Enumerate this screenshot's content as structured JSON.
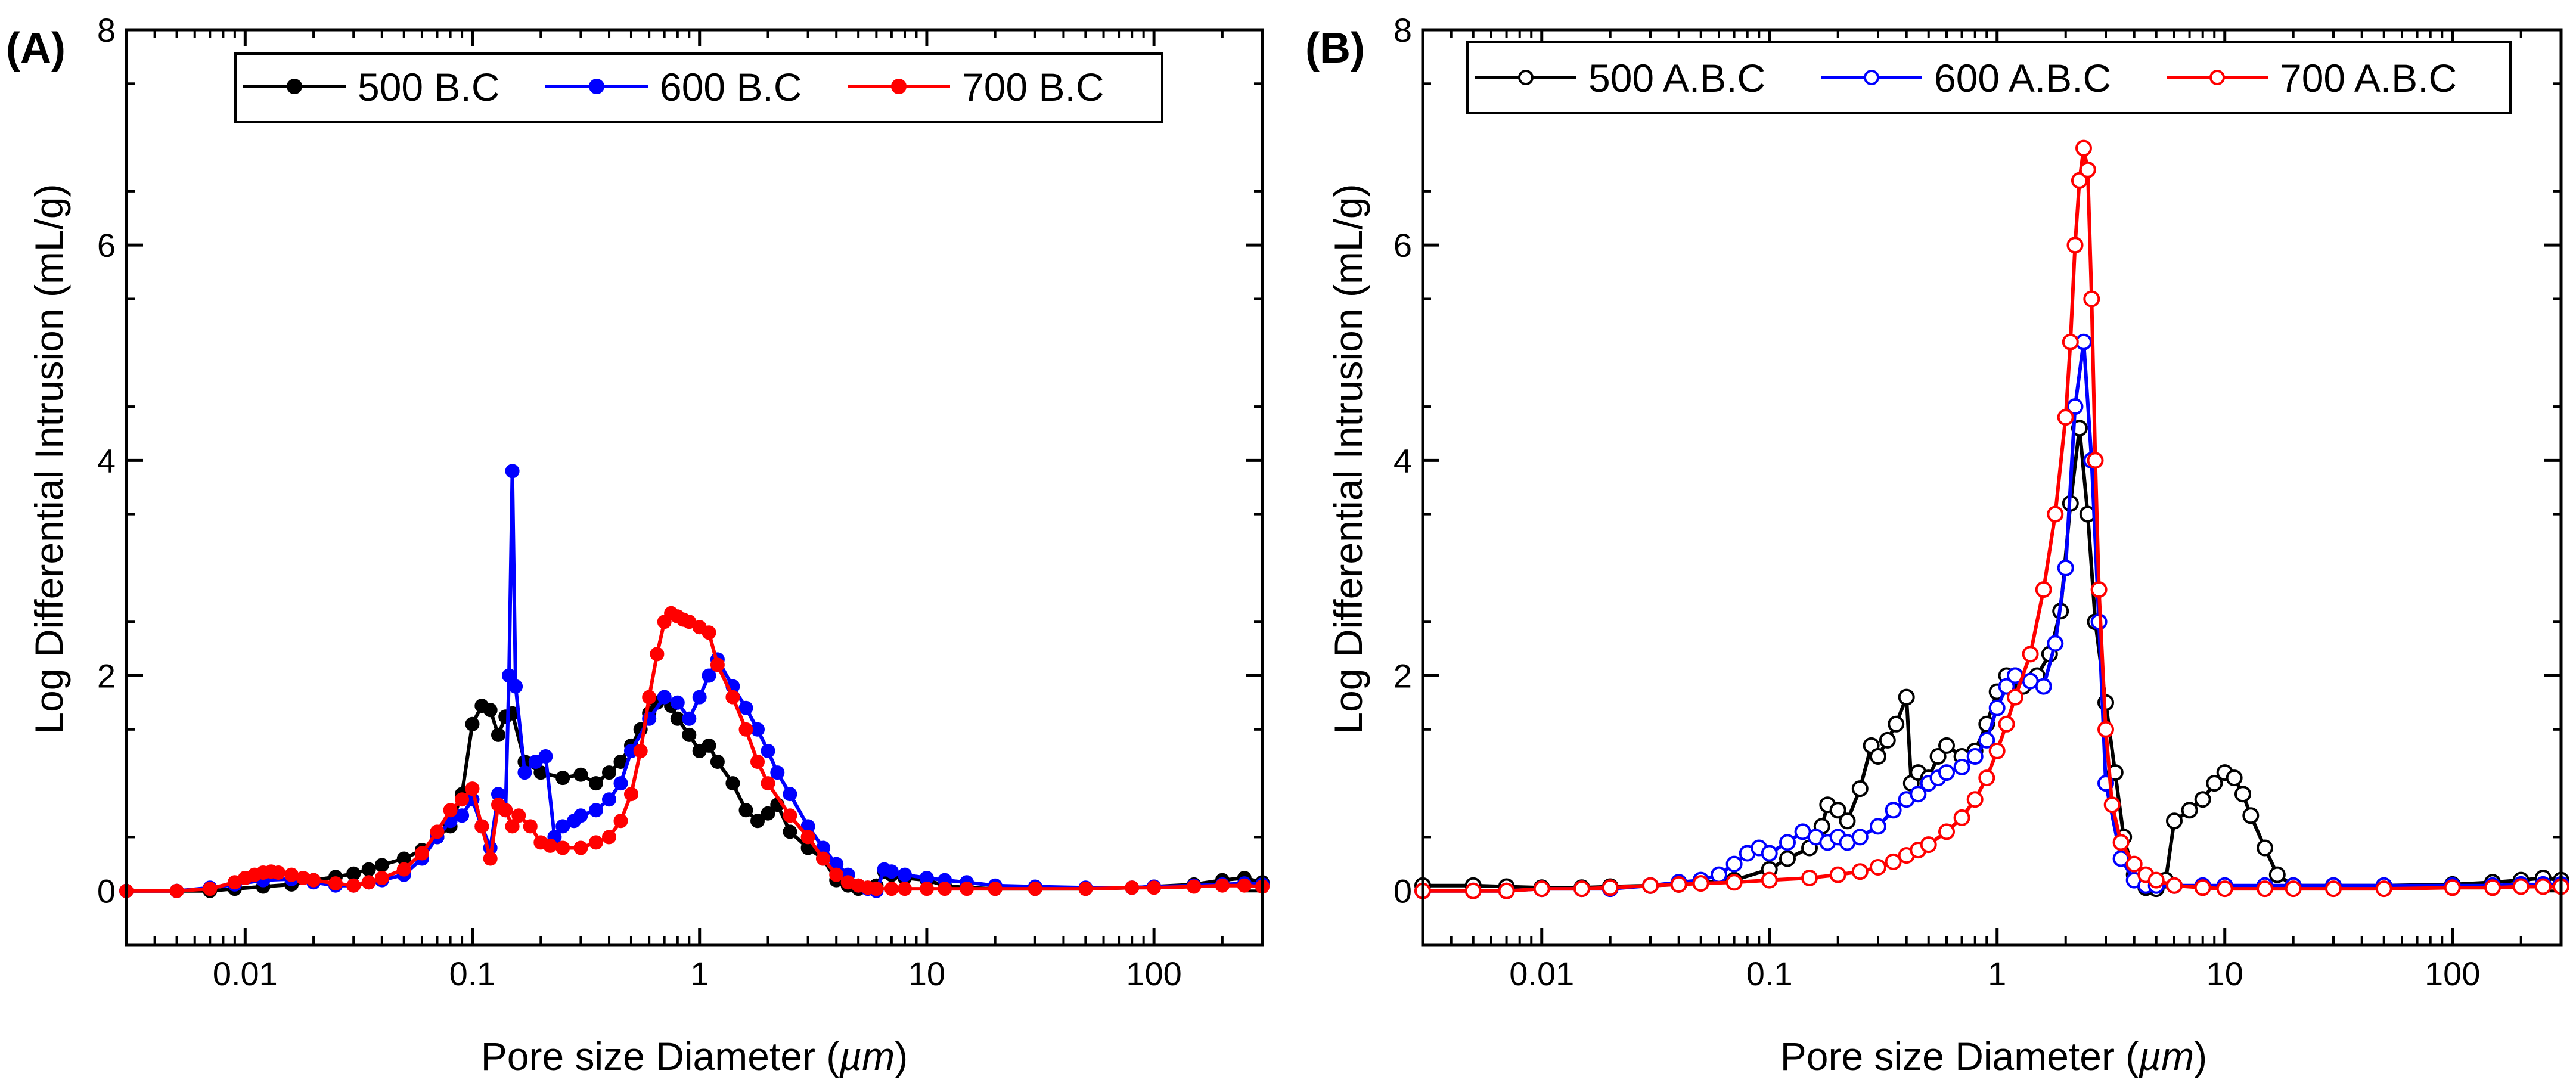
{
  "chart_data": [
    {
      "type": "line",
      "panel_label": "(A)",
      "xlabel_prefix": "Pore size Diameter (",
      "xlabel_unit": "µm",
      "xlabel_suffix": ")",
      "ylabel": "Log Differential Intrusion (mL/g)",
      "xscale": "log",
      "xlim": [
        0.003,
        300
      ],
      "ylim": [
        -0.5,
        8
      ],
      "xticks": [
        0.01,
        0.1,
        1,
        10,
        100
      ],
      "xtick_labels": [
        "0.01",
        "0.1",
        "1",
        "10",
        "100"
      ],
      "yticks": [
        0,
        2,
        4,
        6,
        8
      ],
      "ytick_labels": [
        "0",
        "2",
        "4",
        "6",
        "8"
      ],
      "grid": false,
      "legend_position": "top-center",
      "marker": "filled-circle",
      "series": [
        {
          "name": "500 B.C",
          "color": "#000000",
          "x": [
            0.003,
            0.005,
            0.007,
            0.009,
            0.012,
            0.016,
            0.02,
            0.025,
            0.03,
            0.035,
            0.04,
            0.05,
            0.06,
            0.07,
            0.08,
            0.09,
            0.1,
            0.11,
            0.12,
            0.13,
            0.14,
            0.15,
            0.17,
            0.2,
            0.25,
            0.3,
            0.35,
            0.4,
            0.45,
            0.5,
            0.55,
            0.6,
            0.65,
            0.7,
            0.75,
            0.8,
            0.9,
            1.0,
            1.1,
            1.2,
            1.4,
            1.6,
            1.8,
            2.0,
            2.2,
            2.5,
            3.0,
            3.5,
            4.0,
            4.5,
            5.0,
            5.5,
            6.0,
            6.5,
            7.0,
            8.0,
            10,
            12,
            15,
            20,
            30,
            50,
            80,
            100,
            150,
            200,
            250,
            300
          ],
          "y": [
            0,
            0,
            0,
            0.02,
            0.04,
            0.06,
            0.1,
            0.13,
            0.16,
            0.2,
            0.24,
            0.3,
            0.38,
            0.5,
            0.6,
            0.9,
            1.55,
            1.72,
            1.68,
            1.45,
            1.62,
            1.65,
            1.2,
            1.1,
            1.05,
            1.08,
            1.0,
            1.1,
            1.2,
            1.35,
            1.5,
            1.65,
            1.75,
            1.8,
            1.72,
            1.6,
            1.45,
            1.3,
            1.35,
            1.2,
            1.0,
            0.75,
            0.65,
            0.72,
            0.8,
            0.55,
            0.4,
            0.3,
            0.1,
            0.05,
            0.02,
            0.03,
            0.05,
            0.18,
            0.15,
            0.12,
            0.1,
            0.05,
            0.03,
            0.02,
            0.02,
            0.02,
            0.03,
            0.04,
            0.06,
            0.1,
            0.12,
            0.08
          ]
        },
        {
          "name": "600 B.C",
          "color": "#0000ff",
          "x": [
            0.003,
            0.005,
            0.007,
            0.009,
            0.012,
            0.016,
            0.02,
            0.025,
            0.03,
            0.035,
            0.04,
            0.05,
            0.06,
            0.07,
            0.08,
            0.09,
            0.1,
            0.11,
            0.12,
            0.13,
            0.14,
            0.145,
            0.15,
            0.155,
            0.17,
            0.19,
            0.21,
            0.23,
            0.25,
            0.28,
            0.3,
            0.35,
            0.4,
            0.45,
            0.5,
            0.6,
            0.7,
            0.8,
            0.9,
            1.0,
            1.1,
            1.2,
            1.4,
            1.6,
            1.8,
            2.0,
            2.2,
            2.5,
            3.0,
            3.5,
            4.0,
            4.5,
            5.0,
            5.5,
            6.0,
            6.5,
            7.0,
            8.0,
            10,
            12,
            15,
            20,
            30,
            50,
            80,
            100,
            150,
            200,
            250,
            300
          ],
          "y": [
            0,
            0,
            0.03,
            0.06,
            0.1,
            0.11,
            0.08,
            0.05,
            0.05,
            0.08,
            0.1,
            0.15,
            0.3,
            0.5,
            0.65,
            0.7,
            0.85,
            0.6,
            0.4,
            0.9,
            0.75,
            2.0,
            3.9,
            1.9,
            1.1,
            1.2,
            1.25,
            0.5,
            0.6,
            0.65,
            0.7,
            0.75,
            0.85,
            1.0,
            1.3,
            1.6,
            1.8,
            1.75,
            1.6,
            1.8,
            2.0,
            2.15,
            1.9,
            1.7,
            1.5,
            1.3,
            1.1,
            0.9,
            0.6,
            0.4,
            0.25,
            0.15,
            0.05,
            0.02,
            0,
            0.2,
            0.18,
            0.15,
            0.12,
            0.1,
            0.08,
            0.05,
            0.04,
            0.03,
            0.03,
            0.04,
            0.05,
            0.06,
            0.07,
            0.06
          ]
        },
        {
          "name": "700 B.C",
          "color": "#ff0000",
          "x": [
            0.003,
            0.005,
            0.007,
            0.009,
            0.01,
            0.011,
            0.012,
            0.013,
            0.014,
            0.016,
            0.018,
            0.02,
            0.025,
            0.03,
            0.035,
            0.04,
            0.05,
            0.06,
            0.07,
            0.08,
            0.09,
            0.1,
            0.11,
            0.12,
            0.13,
            0.14,
            0.15,
            0.16,
            0.18,
            0.2,
            0.22,
            0.25,
            0.3,
            0.35,
            0.4,
            0.45,
            0.5,
            0.55,
            0.6,
            0.65,
            0.7,
            0.75,
            0.8,
            0.85,
            0.9,
            1.0,
            1.1,
            1.2,
            1.4,
            1.6,
            1.8,
            2.0,
            2.5,
            3.0,
            3.5,
            4.0,
            4.5,
            5.0,
            5.5,
            6.0,
            7.0,
            8.0,
            10,
            12,
            15,
            20,
            30,
            50,
            80,
            100,
            150,
            200,
            250,
            300
          ],
          "y": [
            0,
            0,
            0.02,
            0.08,
            0.12,
            0.15,
            0.17,
            0.18,
            0.17,
            0.15,
            0.12,
            0.1,
            0.07,
            0.05,
            0.08,
            0.12,
            0.2,
            0.35,
            0.55,
            0.75,
            0.85,
            0.95,
            0.6,
            0.3,
            0.8,
            0.75,
            0.6,
            0.7,
            0.6,
            0.45,
            0.42,
            0.4,
            0.4,
            0.45,
            0.5,
            0.65,
            0.9,
            1.3,
            1.8,
            2.2,
            2.5,
            2.58,
            2.55,
            2.52,
            2.5,
            2.45,
            2.4,
            2.1,
            1.8,
            1.5,
            1.2,
            1.0,
            0.7,
            0.5,
            0.3,
            0.15,
            0.08,
            0.05,
            0.03,
            0.02,
            0.02,
            0.02,
            0.02,
            0.02,
            0.02,
            0.02,
            0.02,
            0.02,
            0.03,
            0.03,
            0.04,
            0.05,
            0.05,
            0.04
          ]
        }
      ]
    },
    {
      "type": "line",
      "panel_label": "(B)",
      "xlabel_prefix": "Pore size Diameter (",
      "xlabel_unit": "µm",
      "xlabel_suffix": ")",
      "ylabel": "Log Differential Intrusion (mL/g)",
      "xscale": "log",
      "xlim": [
        0.003,
        300
      ],
      "ylim": [
        -0.5,
        8
      ],
      "xticks": [
        0.01,
        0.1,
        1,
        10,
        100
      ],
      "xtick_labels": [
        "0.01",
        "0.1",
        "1",
        "10",
        "100"
      ],
      "yticks": [
        0,
        2,
        4,
        6,
        8
      ],
      "ytick_labels": [
        "0",
        "2",
        "4",
        "6",
        "8"
      ],
      "grid": false,
      "legend_position": "top-center",
      "marker": "open-circle",
      "series": [
        {
          "name": "500 A.B.C",
          "color": "#000000",
          "x": [
            0.003,
            0.005,
            0.007,
            0.01,
            0.015,
            0.02,
            0.03,
            0.04,
            0.05,
            0.07,
            0.1,
            0.12,
            0.15,
            0.17,
            0.18,
            0.2,
            0.22,
            0.25,
            0.28,
            0.3,
            0.33,
            0.36,
            0.4,
            0.42,
            0.45,
            0.5,
            0.55,
            0.6,
            0.7,
            0.8,
            0.9,
            1.0,
            1.1,
            1.2,
            1.3,
            1.5,
            1.7,
            1.9,
            2.1,
            2.3,
            2.5,
            2.7,
            3.0,
            3.3,
            3.6,
            4.0,
            4.5,
            5.0,
            5.5,
            6.0,
            7.0,
            8.0,
            9.0,
            10.0,
            11.0,
            12.0,
            13.0,
            15.0,
            17.0,
            20.0,
            30,
            50,
            100,
            150,
            200,
            250,
            300
          ],
          "y": [
            0.05,
            0.05,
            0.04,
            0.03,
            0.03,
            0.04,
            0.05,
            0.06,
            0.08,
            0.1,
            0.2,
            0.3,
            0.4,
            0.6,
            0.8,
            0.75,
            0.65,
            0.95,
            1.35,
            1.25,
            1.4,
            1.55,
            1.8,
            1.0,
            1.1,
            1.05,
            1.25,
            1.35,
            1.25,
            1.3,
            1.55,
            1.85,
            2.0,
            2.0,
            1.9,
            2.0,
            2.2,
            2.6,
            3.6,
            4.3,
            3.5,
            2.5,
            1.75,
            1.1,
            0.5,
            0.15,
            0.03,
            0.02,
            0.1,
            0.65,
            0.75,
            0.85,
            1.0,
            1.1,
            1.05,
            0.9,
            0.7,
            0.4,
            0.15,
            0.05,
            0.05,
            0.05,
            0.06,
            0.08,
            0.1,
            0.12,
            0.1
          ]
        },
        {
          "name": "600 A.B.C",
          "color": "#0000ff",
          "x": [
            0.003,
            0.005,
            0.007,
            0.01,
            0.015,
            0.02,
            0.03,
            0.04,
            0.05,
            0.06,
            0.07,
            0.08,
            0.09,
            0.1,
            0.12,
            0.14,
            0.16,
            0.18,
            0.2,
            0.22,
            0.25,
            0.3,
            0.35,
            0.4,
            0.45,
            0.5,
            0.55,
            0.6,
            0.7,
            0.8,
            0.9,
            1.0,
            1.1,
            1.2,
            1.4,
            1.6,
            1.8,
            2.0,
            2.2,
            2.4,
            2.6,
            2.8,
            3.0,
            3.5,
            4.0,
            4.5,
            5.0,
            6.0,
            8.0,
            10,
            15,
            20,
            30,
            50,
            100,
            150,
            200,
            250,
            300
          ],
          "y": [
            0,
            0,
            0,
            0.02,
            0.02,
            0.02,
            0.05,
            0.08,
            0.1,
            0.15,
            0.25,
            0.35,
            0.4,
            0.35,
            0.45,
            0.55,
            0.5,
            0.45,
            0.5,
            0.45,
            0.5,
            0.6,
            0.75,
            0.85,
            0.9,
            1.0,
            1.05,
            1.1,
            1.15,
            1.25,
            1.4,
            1.7,
            1.9,
            2.0,
            1.95,
            1.9,
            2.3,
            3.0,
            4.5,
            5.1,
            4.0,
            2.5,
            1.0,
            0.3,
            0.1,
            0.05,
            0.05,
            0.05,
            0.05,
            0.05,
            0.05,
            0.05,
            0.05,
            0.05,
            0.05,
            0.05,
            0.06,
            0.06,
            0.06
          ]
        },
        {
          "name": "700 A.B.C",
          "color": "#ff0000",
          "x": [
            0.003,
            0.005,
            0.007,
            0.01,
            0.015,
            0.02,
            0.03,
            0.04,
            0.05,
            0.07,
            0.1,
            0.15,
            0.2,
            0.25,
            0.3,
            0.35,
            0.4,
            0.45,
            0.5,
            0.6,
            0.7,
            0.8,
            0.9,
            1.0,
            1.1,
            1.2,
            1.4,
            1.6,
            1.8,
            2.0,
            2.1,
            2.2,
            2.3,
            2.4,
            2.5,
            2.6,
            2.7,
            2.8,
            3.0,
            3.2,
            3.5,
            4.0,
            4.5,
            5.0,
            6.0,
            8.0,
            10,
            15,
            20,
            30,
            50,
            100,
            150,
            200,
            250,
            300
          ],
          "y": [
            0,
            0,
            0,
            0.02,
            0.02,
            0.03,
            0.05,
            0.06,
            0.07,
            0.08,
            0.1,
            0.12,
            0.15,
            0.18,
            0.22,
            0.27,
            0.33,
            0.38,
            0.43,
            0.55,
            0.68,
            0.85,
            1.05,
            1.3,
            1.55,
            1.8,
            2.2,
            2.8,
            3.5,
            4.4,
            5.1,
            6.0,
            6.6,
            6.9,
            6.7,
            5.5,
            4.0,
            2.8,
            1.5,
            0.8,
            0.45,
            0.25,
            0.15,
            0.1,
            0.05,
            0.03,
            0.02,
            0.02,
            0.02,
            0.02,
            0.02,
            0.03,
            0.03,
            0.04,
            0.04,
            0.04
          ]
        }
      ]
    }
  ]
}
